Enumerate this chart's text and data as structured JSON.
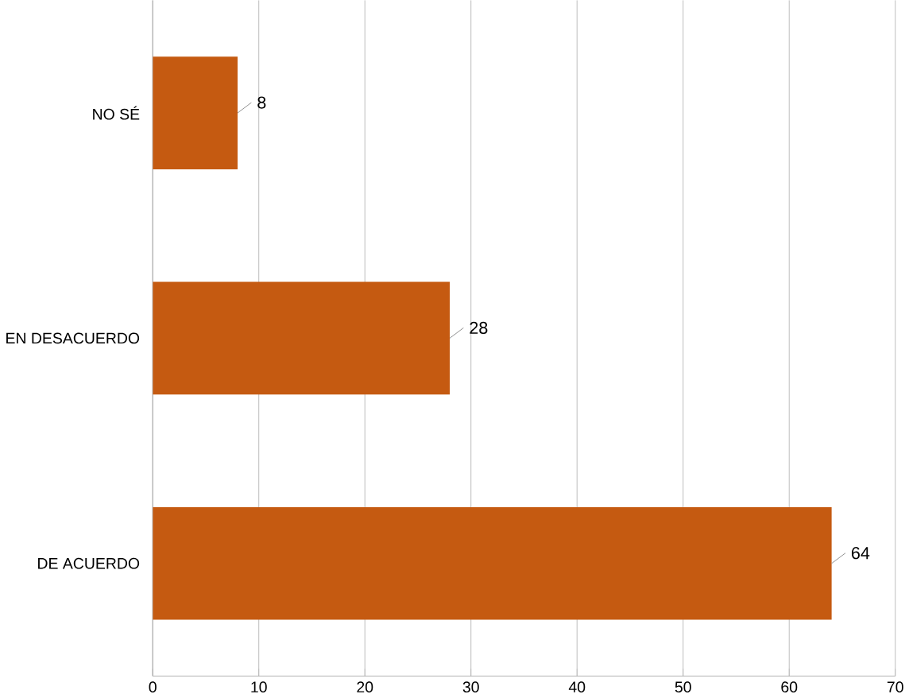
{
  "chart_data": {
    "type": "bar",
    "orientation": "horizontal",
    "categories": [
      "NO SÉ",
      "EN DESACUERDO",
      "DE ACUERDO"
    ],
    "values": [
      8,
      28,
      64
    ],
    "color": "#c55a11",
    "xlim": [
      0,
      70
    ],
    "xticks": [
      0,
      10,
      20,
      30,
      40,
      50,
      60,
      70
    ],
    "grid": "x",
    "data_labels": true
  }
}
